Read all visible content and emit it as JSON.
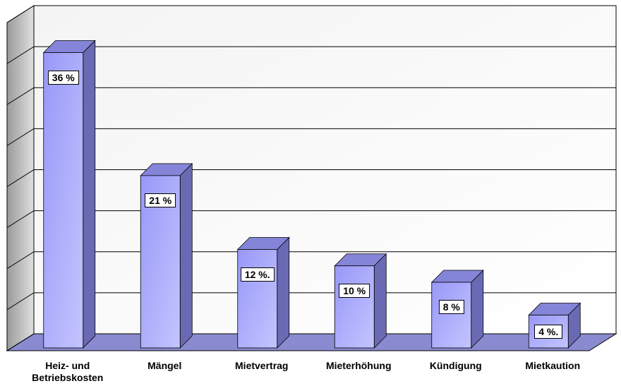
{
  "chart_data": {
    "type": "bar3d",
    "categories": [
      "Heiz- und Betriebskosten",
      "Mängel",
      "Mietvertrag",
      "Mieterhöhung",
      "Kündigung",
      "Mietkaution"
    ],
    "values": [
      36,
      21,
      12,
      10,
      8,
      4
    ],
    "value_labels": [
      "36 %",
      "21 %",
      "12 %.",
      "10 %",
      "8 %",
      "4 %."
    ],
    "color": "#a4a4ff",
    "ylim": [
      0,
      40
    ],
    "yticks": [
      0,
      5,
      10,
      15,
      20,
      25,
      30,
      35,
      40
    ],
    "grid": true
  }
}
